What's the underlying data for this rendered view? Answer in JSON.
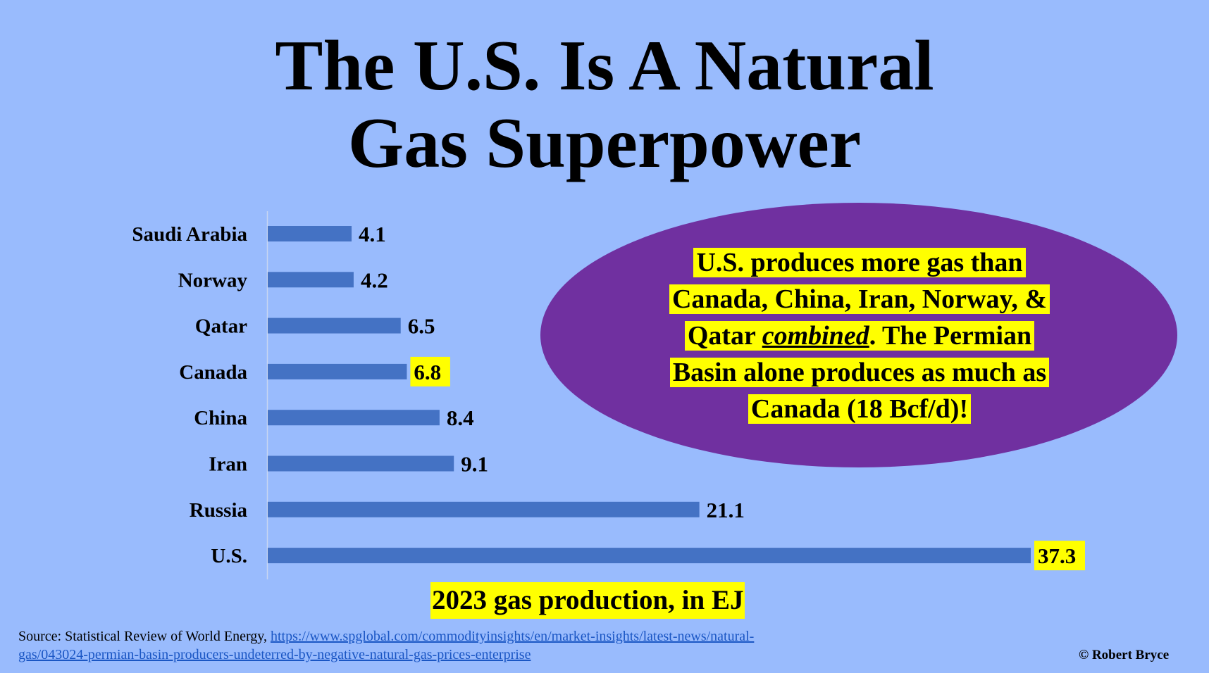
{
  "title": {
    "line1": "The U.S. Is A Natural",
    "line2": "Gas Superpower"
  },
  "chart_data": {
    "type": "bar",
    "orientation": "horizontal",
    "categories": [
      "Saudi Arabia",
      "Norway",
      "Qatar",
      "Canada",
      "China",
      "Iran",
      "Russia",
      "U.S."
    ],
    "values": [
      4.1,
      4.2,
      6.5,
      6.8,
      8.4,
      9.1,
      21.1,
      37.3
    ],
    "value_labels": [
      "4.1",
      "4.2",
      "6.5",
      "6.8",
      "8.4",
      "9.1",
      "21.1",
      "37.3"
    ],
    "highlighted_values": [
      "Canada",
      "U.S."
    ],
    "xlabel": "2023 gas production, in EJ",
    "ylabel": "",
    "xlim": [
      0,
      37.3
    ],
    "grid": false,
    "bar_color": "#4472c4",
    "highlight_color": "#ffff00"
  },
  "callout": {
    "line1": "U.S. produces more gas than",
    "line2": "Canada, China, Iran, Norway, &",
    "line3_pre": "Qatar ",
    "line3_emph": "combined",
    "line3_post": ". The Permian",
    "line4": "Basin alone produces as much as",
    "line5": "Canada (18 Bcf/d)!",
    "bubble_color": "#7030a0"
  },
  "source": {
    "prefix": "Source: Statistical Review of World Energy, ",
    "link": "https://www.spglobal.com/commodityinsights/en/market-insights/latest-news/natural-gas/043024-permian-basin-producers-undeterred-by-negative-natural-gas-prices-enterprise"
  },
  "copyright": "© Robert Bryce",
  "colors": {
    "background": "#99bbfd",
    "bar": "#4472c4",
    "highlight": "#ffff00",
    "bubble": "#7030a0"
  }
}
